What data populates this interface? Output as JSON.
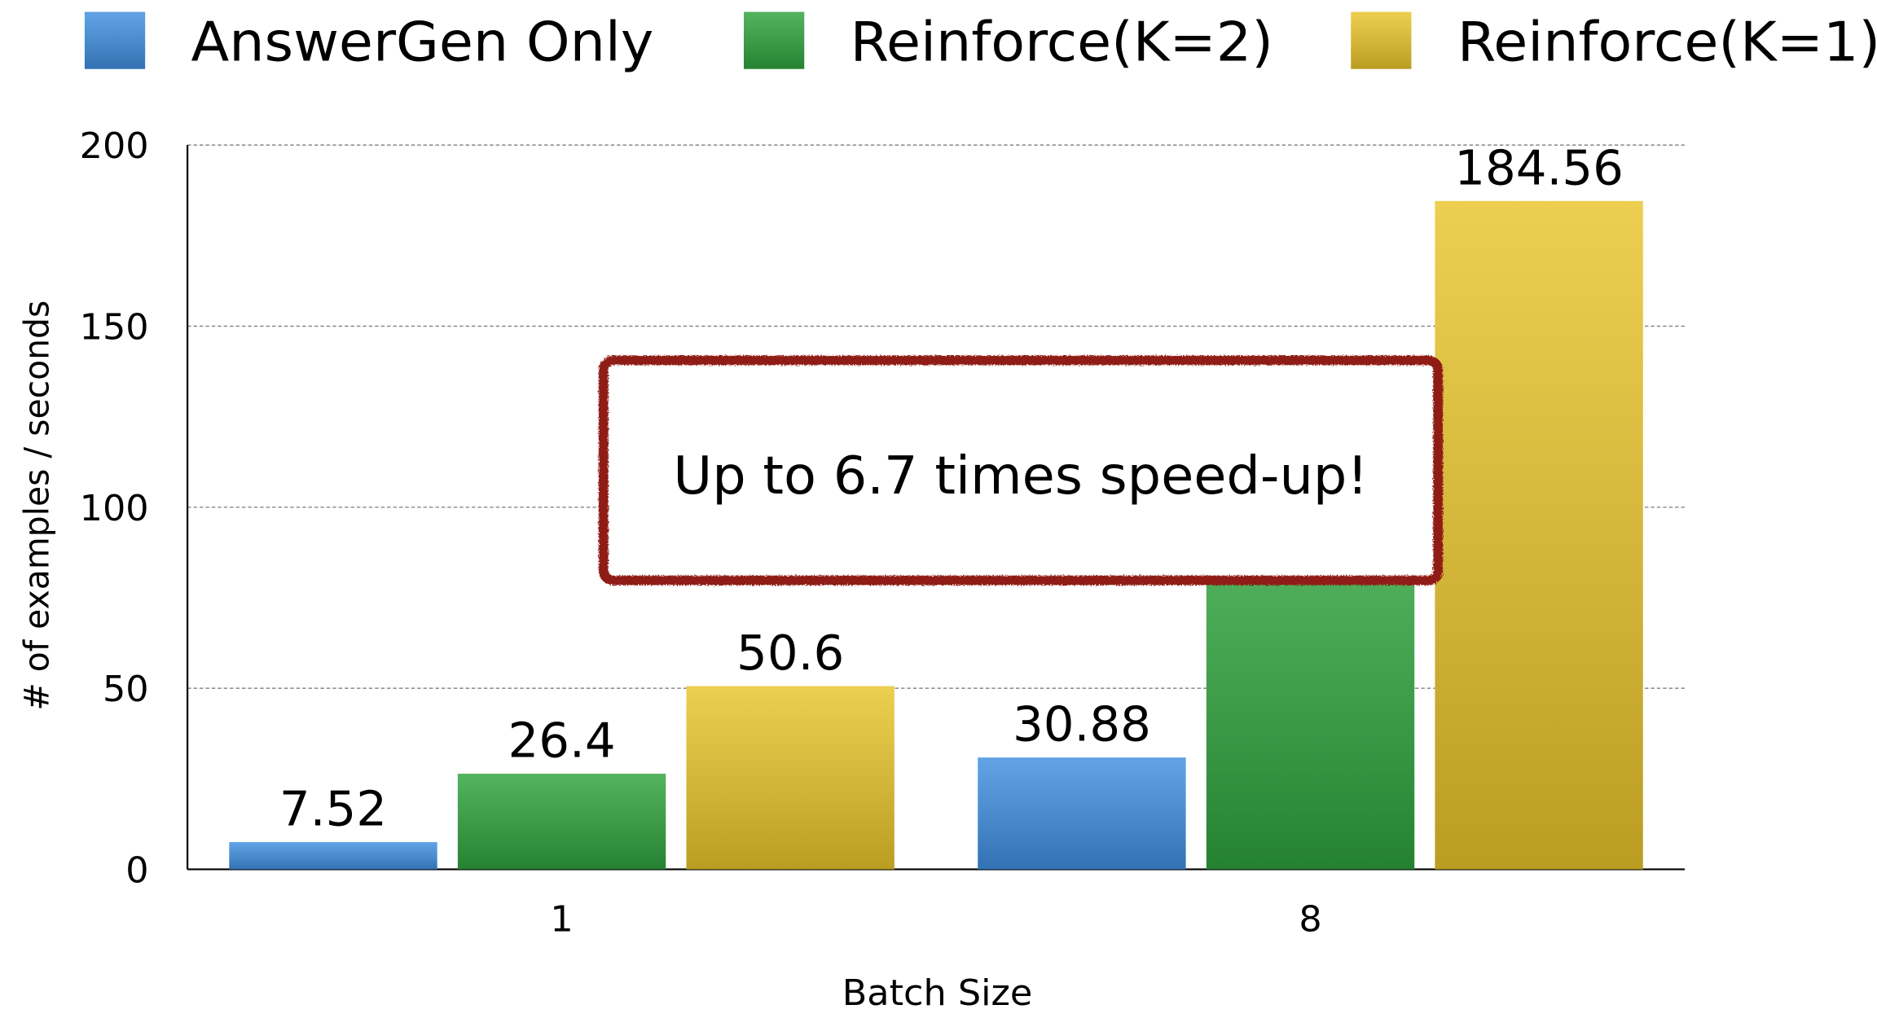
{
  "chart_data": {
    "type": "bar",
    "categories": [
      "1",
      "8"
    ],
    "series": [
      {
        "name": "AnswerGen Only",
        "color": "#3f8fe0",
        "values": [
          7.52,
          30.88
        ]
      },
      {
        "name": "Reinforce(K=2)",
        "color": "#2ea23c",
        "values": [
          26.4,
          90
        ]
      },
      {
        "name": "Reinforce(K=1)",
        "color": "#e8c42a",
        "values": [
          50.6,
          184.56
        ]
      }
    ],
    "ylim": [
      0,
      200
    ],
    "yticks": [
      0,
      50,
      100,
      150,
      200
    ],
    "grid": true,
    "xlabel": "Batch Size",
    "ylabel": "# of examples / seconds",
    "annotation": "Up to 6.7 times speed-up!",
    "legend": "top"
  }
}
